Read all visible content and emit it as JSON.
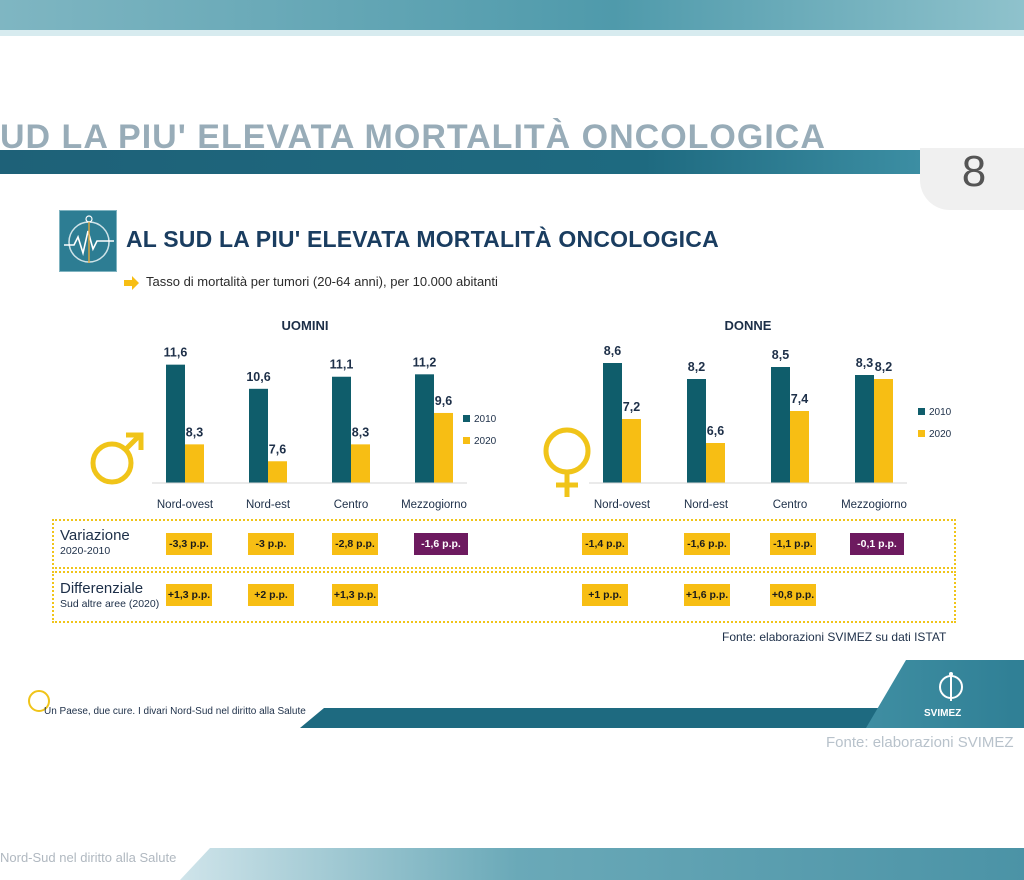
{
  "ghost": {
    "title": "UD LA PIU' ELEVATA MORTALITÀ ONCOLOGICA",
    "page_number": "8",
    "footer_source": "Fonte: elaborazioni SVIMEZ",
    "bottom_text": "Nord-Sud nel diritto alla Salute"
  },
  "slide": {
    "title": "AL SUD LA PIU' ELEVATA MORTALITÀ ONCOLOGICA",
    "subtitle": "Tasso di mortalità per tumori (20-64 anni), per 10.000 abitanti",
    "source": "Fonte: elaborazioni SVIMEZ su dati ISTAT",
    "footer": "Un Paese, due cure. I divari Nord-Sud nel diritto alla Salute",
    "logo_text": "SVIMEZ"
  },
  "colors": {
    "bar_2010": "#0f5d6b",
    "bar_2020": "#f7be14",
    "purple": "#6d1a5f",
    "title": "#1a3d60"
  },
  "chart_data": [
    {
      "type": "bar",
      "title": "UOMINI",
      "categories": [
        "Nord-ovest",
        "Nord-est",
        "Centro",
        "Mezzogiorno"
      ],
      "series": [
        {
          "name": "2010",
          "values": [
            11.6,
            10.6,
            11.1,
            11.2
          ],
          "labels": [
            "11,6",
            "10,6",
            "11,1",
            "11,2"
          ]
        },
        {
          "name": "2020",
          "values": [
            8.3,
            7.6,
            8.3,
            9.6
          ],
          "labels": [
            "8,3",
            "7,6",
            "8,3",
            "9,6"
          ]
        }
      ],
      "ylim": [
        6.7,
        12
      ],
      "legend": "right",
      "grid": false
    },
    {
      "type": "bar",
      "title": "DONNE",
      "categories": [
        "Nord-ovest",
        "Nord-est",
        "Centro",
        "Mezzogiorno"
      ],
      "series": [
        {
          "name": "2010",
          "values": [
            8.6,
            8.2,
            8.5,
            8.3
          ],
          "labels": [
            "8,6",
            "8,2",
            "8,5",
            "8,3"
          ]
        },
        {
          "name": "2020",
          "values": [
            7.2,
            6.6,
            7.4,
            8.2
          ],
          "labels": [
            "7,2",
            "6,6",
            "7,4",
            "8,2"
          ]
        }
      ],
      "ylim": [
        5.6,
        8.8
      ],
      "legend": "right",
      "grid": false
    }
  ],
  "table": {
    "rows": [
      {
        "label": "Variazione",
        "sublabel": "2020-2010",
        "uomini": [
          "-3,3 p.p.",
          "-3 p.p.",
          "-2,8 p.p.",
          "-1,6 p.p."
        ],
        "donne": [
          "-1,4 p.p.",
          "-1,6 p.p.",
          "-1,1 p.p.",
          "-0,1 p.p."
        ]
      },
      {
        "label": "Differenziale",
        "sublabel": "Sud altre aree (2020)",
        "uomini": [
          "+1,3 p.p.",
          "+2 p.p.",
          "+1,3 p.p."
        ],
        "donne": [
          "+1 p.p.",
          "+1,6 p.p.",
          "+0,8 p.p."
        ]
      }
    ]
  }
}
